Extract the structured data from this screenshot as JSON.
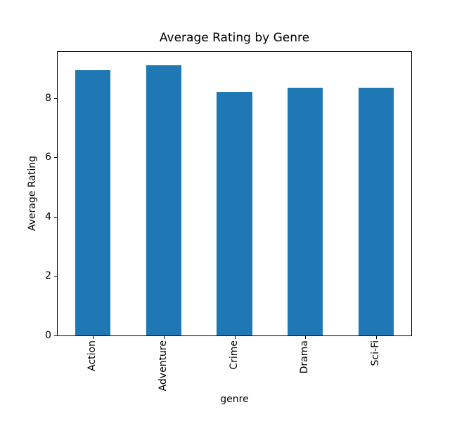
{
  "chart_data": {
    "type": "bar",
    "title": "Average Rating by Genre",
    "xlabel": "genre",
    "ylabel": "Average Rating",
    "categories": [
      "Action",
      "Adventure",
      "Crime",
      "Drama",
      "Sci-Fi"
    ],
    "values": [
      8.95,
      9.1,
      8.2,
      8.35,
      8.35
    ],
    "yticks": [
      0,
      2,
      4,
      6,
      8
    ],
    "ylim": [
      0,
      9.555
    ],
    "bar_color": "#1f77b4",
    "bar_width_fraction": 0.5,
    "x_tick_rotation_deg": 90,
    "grid": false,
    "legend": false,
    "background_color": "#ffffff",
    "spine_color": "#000000"
  }
}
